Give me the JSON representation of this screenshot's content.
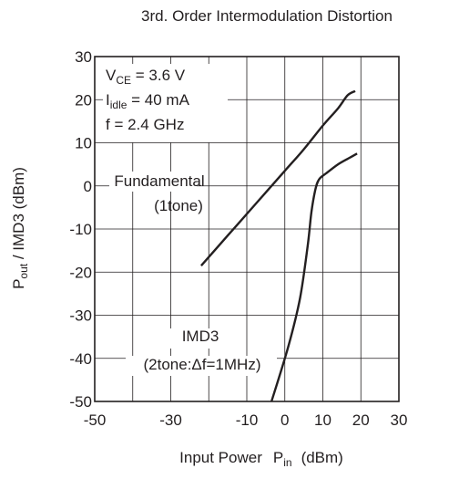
{
  "chart_data": {
    "type": "line",
    "title": "3rd. Order Intermodulation Distortion",
    "xlabel": "Input Power",
    "xlabel_symbol": "P",
    "xlabel_sub": "in",
    "xlabel_unit": "(dBm)",
    "ylabel_p": "P",
    "ylabel_sub": "out",
    "ylabel_rest": " / IMD3  (dBm)",
    "xlim": [
      -50,
      30
    ],
    "ylim": [
      -50,
      30
    ],
    "x_ticks": [
      "-50",
      "-30",
      "-10",
      "0",
      "10",
      "20",
      "30"
    ],
    "x_tick_values": [
      -50,
      -30,
      -10,
      0,
      10,
      20,
      30
    ],
    "y_ticks": [
      "30",
      "20",
      "10",
      "0",
      "-10",
      "-20",
      "-30",
      "-40",
      "-50"
    ],
    "y_tick_values": [
      30,
      20,
      10,
      0,
      -10,
      -20,
      -30,
      -40,
      -50
    ],
    "grid": true,
    "conditions": {
      "vce_main": "V",
      "vce_sub": "CE",
      "vce_rest": " = 3.6 V",
      "idle_main": "I",
      "idle_sub": "idle",
      "idle_rest": " = 40 mA",
      "freq": "f = 2.4 GHz"
    },
    "series": [
      {
        "label_line1": "Fundamental",
        "label_line2": "(1tone)",
        "x": [
          -22,
          -15,
          -8,
          0,
          5,
          10,
          14,
          16.5,
          18.5
        ],
        "y": [
          -18.5,
          -11.5,
          -4.5,
          3.5,
          8.5,
          14,
          18,
          21,
          22
        ]
      },
      {
        "label_line1": "IMD3",
        "label_line2": "(2tone:Δf=1MHz)",
        "x": [
          -3.5,
          1,
          4,
          6,
          7,
          8,
          9,
          11,
          14,
          17,
          19
        ],
        "y": [
          -50,
          -37,
          -26,
          -14,
          -6,
          -1,
          1.5,
          3,
          5,
          6.5,
          7.5
        ]
      }
    ]
  }
}
